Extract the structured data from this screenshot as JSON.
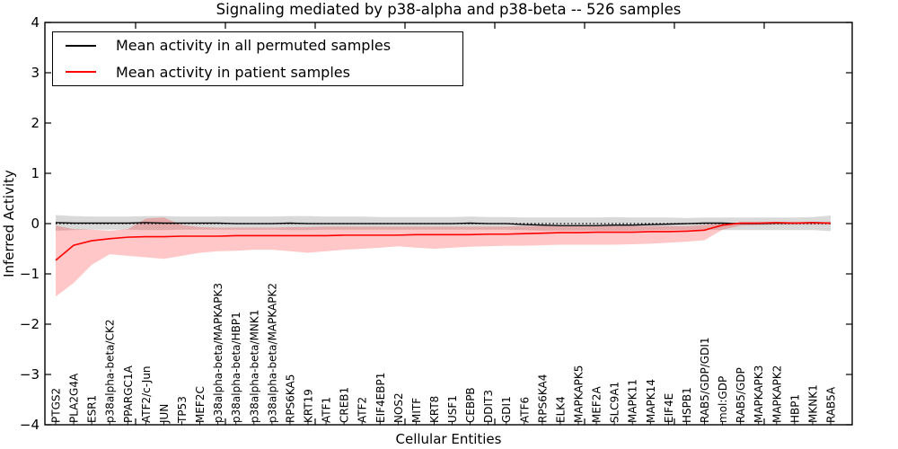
{
  "figure": {
    "title": "Signaling mediated by p38-alpha and p38-beta -- 526 samples",
    "xlabel": "Cellular Entities",
    "ylabel": "Inferred Activity"
  },
  "legend": {
    "entries": [
      {
        "label": "Mean activity in all permuted samples",
        "color": "#000000"
      },
      {
        "label": "Mean activity in patient samples",
        "color": "#ff0000"
      }
    ]
  },
  "chart_data": {
    "type": "line",
    "title": "Signaling mediated by p38-alpha and p38-beta -- 526 samples",
    "xlabel": "Cellular Entities",
    "ylabel": "Inferred Activity",
    "ylim": [
      -4,
      4
    ],
    "yticks": [
      "4",
      "3",
      "2",
      "1",
      "0",
      "−1",
      "−2",
      "−3",
      "−4"
    ],
    "ytick_values": [
      4,
      3,
      2,
      1,
      0,
      -1,
      -2,
      -3,
      -4
    ],
    "grid": false,
    "legend_position": "upper left",
    "zero_line": {
      "value": 0,
      "style": "dotted",
      "color": "#000000"
    },
    "categories": [
      "PTGS2",
      "PLA2G4A",
      "ESR1",
      "p38alpha-beta/CK2",
      "PPARGC1A",
      "ATF2/c-Jun",
      "JUN",
      "TP53",
      "MEF2C",
      "p38alpha-beta/MAPKAPK3",
      "p38alpha-beta/HBP1",
      "p38alpha-beta/MNK1",
      "p38alpha-beta/MAPKAPK2",
      "RPS6KA5",
      "KRT19",
      "ATF1",
      "CREB1",
      "ATF2",
      "EIF4EBP1",
      "NOS2",
      "MITF",
      "KRT8",
      "USF1",
      "CEBPB",
      "DDIT3",
      "GDI1",
      "ATF6",
      "RPS6KA4",
      "ELK4",
      "MAPKAPK5",
      "MEF2A",
      "SLC9A1",
      "MAPK11",
      "MAPK14",
      "EIF4E",
      "HSPB1",
      "RAB5/GDP/GDI1",
      "mol:GDP",
      "RAB5/GDP",
      "MAPKAPK3",
      "MAPKAPK2",
      "HBP1",
      "MKNK1",
      "RAB5A"
    ],
    "series": [
      {
        "name": "Mean activity in all permuted samples",
        "color": "#000000",
        "band_color": "rgba(0,0,0,0.15)",
        "values": [
          0.02,
          0.01,
          0.01,
          0.01,
          0.01,
          0.02,
          0.01,
          0.01,
          0.01,
          0.01,
          0.0,
          0.0,
          0.0,
          0.01,
          0.0,
          0.0,
          0.0,
          0.0,
          0.0,
          0.0,
          0.0,
          0.0,
          0.0,
          0.01,
          0.0,
          0.0,
          -0.02,
          -0.03,
          -0.04,
          -0.04,
          -0.04,
          -0.03,
          -0.03,
          -0.02,
          -0.01,
          0.0,
          0.01,
          0.01,
          0.0,
          0.0,
          0.01,
          0.01,
          0.02,
          0.01
        ],
        "band_upper": [
          0.17,
          0.15,
          0.14,
          0.14,
          0.14,
          0.15,
          0.15,
          0.14,
          0.14,
          0.14,
          0.14,
          0.14,
          0.14,
          0.15,
          0.15,
          0.14,
          0.14,
          0.14,
          0.13,
          0.13,
          0.13,
          0.13,
          0.13,
          0.14,
          0.13,
          0.13,
          0.12,
          0.12,
          0.12,
          0.12,
          0.12,
          0.13,
          0.12,
          0.12,
          0.12,
          0.11,
          0.12,
          0.12,
          0.12,
          0.12,
          0.12,
          0.12,
          0.13,
          0.16
        ],
        "band_lower": [
          -0.14,
          -0.13,
          -0.12,
          -0.12,
          -0.12,
          -0.13,
          -0.13,
          -0.12,
          -0.12,
          -0.12,
          -0.12,
          -0.12,
          -0.12,
          -0.13,
          -0.13,
          -0.12,
          -0.12,
          -0.12,
          -0.12,
          -0.12,
          -0.12,
          -0.12,
          -0.12,
          -0.12,
          -0.12,
          -0.12,
          -0.13,
          -0.14,
          -0.14,
          -0.14,
          -0.14,
          -0.14,
          -0.14,
          -0.13,
          -0.13,
          -0.12,
          -0.12,
          -0.13,
          -0.13,
          -0.13,
          -0.13,
          -0.13,
          -0.13,
          -0.15
        ]
      },
      {
        "name": "Mean activity in patient samples",
        "color": "#ff0000",
        "band_color": "rgba(255,0,0,0.22)",
        "values": [
          -0.73,
          -0.43,
          -0.34,
          -0.3,
          -0.27,
          -0.26,
          -0.26,
          -0.25,
          -0.25,
          -0.25,
          -0.24,
          -0.24,
          -0.24,
          -0.24,
          -0.24,
          -0.24,
          -0.23,
          -0.23,
          -0.23,
          -0.23,
          -0.22,
          -0.22,
          -0.22,
          -0.22,
          -0.21,
          -0.21,
          -0.2,
          -0.19,
          -0.18,
          -0.18,
          -0.17,
          -0.17,
          -0.17,
          -0.16,
          -0.16,
          -0.15,
          -0.13,
          -0.03,
          0.01,
          0.01,
          0.02,
          0.01,
          0.02,
          0.01
        ],
        "band_upper": [
          -0.04,
          -0.11,
          -0.12,
          -0.14,
          -0.11,
          0.1,
          0.12,
          -0.03,
          -0.07,
          -0.08,
          -0.08,
          -0.08,
          -0.08,
          -0.07,
          -0.07,
          -0.06,
          -0.06,
          -0.06,
          -0.06,
          -0.06,
          -0.06,
          -0.06,
          -0.06,
          -0.06,
          -0.06,
          -0.06,
          -0.05,
          -0.05,
          -0.05,
          -0.05,
          -0.05,
          -0.05,
          -0.05,
          -0.05,
          -0.05,
          -0.05,
          -0.03,
          0.01,
          0.02,
          0.02,
          0.03,
          0.03,
          0.03,
          0.03
        ],
        "band_lower": [
          -1.45,
          -1.18,
          -0.82,
          -0.61,
          -0.64,
          -0.67,
          -0.7,
          -0.64,
          -0.58,
          -0.55,
          -0.54,
          -0.52,
          -0.52,
          -0.55,
          -0.58,
          -0.55,
          -0.52,
          -0.5,
          -0.48,
          -0.45,
          -0.48,
          -0.5,
          -0.48,
          -0.46,
          -0.45,
          -0.44,
          -0.44,
          -0.43,
          -0.42,
          -0.42,
          -0.42,
          -0.42,
          -0.41,
          -0.4,
          -0.38,
          -0.36,
          -0.33,
          -0.12,
          -0.04,
          -0.03,
          -0.02,
          -0.02,
          -0.02,
          -0.02
        ]
      }
    ]
  }
}
